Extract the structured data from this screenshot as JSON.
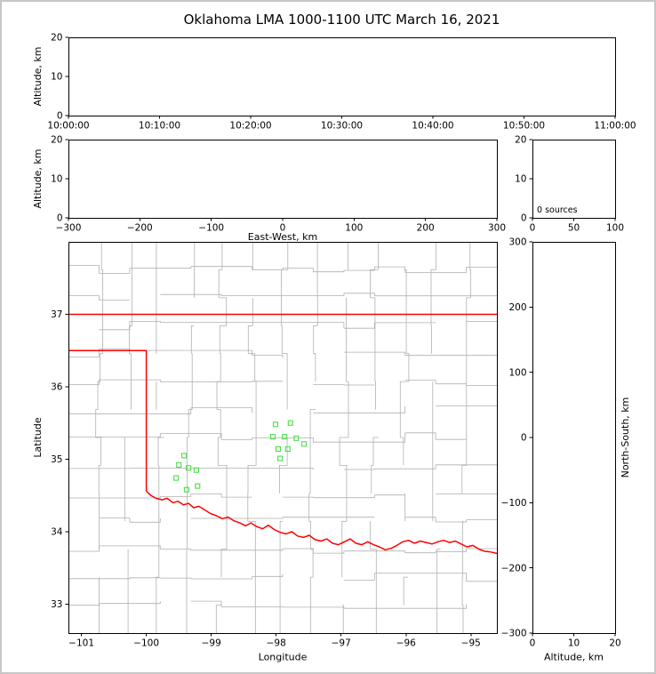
{
  "figure": {
    "title": "Oklahoma LMA 1000-1100 UTC March 16, 2021"
  },
  "colors": {
    "background": "#ffffff",
    "frame_border": "#c6c6c6",
    "axis": "#000000",
    "county_line": "#b0b0b0",
    "state_line": "#ff0000",
    "river_line": "#ff0000",
    "station_marker": "#4ade4a"
  },
  "chart_data": [
    {
      "id": "time_height",
      "name": "time-altitude-panel",
      "type": "scatter",
      "ylabel": "Altitude, km",
      "ylim": [
        0,
        20
      ],
      "y_ticks": [
        0,
        10,
        20
      ],
      "y_tick_labels": [
        "0",
        "10",
        "20"
      ],
      "x_tick_labels": [
        "10:00:00",
        "10:10:00",
        "10:20:00",
        "10:30:00",
        "10:40:00",
        "10:50:00",
        "11:00:00"
      ],
      "points": []
    },
    {
      "id": "ew_height",
      "name": "east-west-altitude-panel",
      "type": "scatter",
      "xlabel": "East-West, km",
      "ylabel": "Altitude, km",
      "xlim": [
        -300,
        300
      ],
      "ylim": [
        0,
        20
      ],
      "x_ticks": [
        -300,
        -200,
        -100,
        0,
        100,
        200,
        300
      ],
      "x_tick_labels": [
        "−300",
        "−200",
        "−100",
        "0",
        "100",
        "200",
        "300"
      ],
      "y_ticks": [
        0,
        10,
        20
      ],
      "y_tick_labels": [
        "0",
        "10",
        "20"
      ],
      "points": []
    },
    {
      "id": "altitude_histogram",
      "name": "altitude-histogram-panel",
      "type": "line",
      "xlim": [
        0,
        100
      ],
      "ylim": [
        0,
        20
      ],
      "x_ticks": [
        0,
        50,
        100
      ],
      "x_tick_labels": [
        "0",
        "50",
        "100"
      ],
      "y_ticks": [
        0,
        10,
        20
      ],
      "y_tick_labels": [
        "0",
        "10",
        "20"
      ],
      "annotation": "0 sources",
      "points": []
    },
    {
      "id": "plan_view",
      "name": "plan-view-map-panel",
      "type": "scatter",
      "xlabel": "Longitude",
      "ylabel": "Latitude",
      "xlim": [
        -101.2,
        -94.6
      ],
      "ylim": [
        32.6,
        38.0
      ],
      "x_ticks": [
        -101,
        -100,
        -99,
        -98,
        -97,
        -96,
        -95
      ],
      "x_tick_labels": [
        "−101",
        "−100",
        "−99",
        "−98",
        "−97",
        "−96",
        "−95"
      ],
      "y_ticks": [
        37,
        36,
        35,
        34,
        33
      ],
      "y_tick_labels": [
        "37",
        "36",
        "35",
        "34",
        "33"
      ],
      "stations": [
        [
          -98.01,
          35.48
        ],
        [
          -97.78,
          35.5
        ],
        [
          -98.05,
          35.31
        ],
        [
          -97.87,
          35.31
        ],
        [
          -97.69,
          35.29
        ],
        [
          -97.97,
          35.14
        ],
        [
          -97.82,
          35.14
        ],
        [
          -97.57,
          35.21
        ],
        [
          -97.94,
          35.01
        ],
        [
          -99.42,
          35.05
        ],
        [
          -99.5,
          34.92
        ],
        [
          -99.35,
          34.88
        ],
        [
          -99.23,
          34.85
        ],
        [
          -99.54,
          34.74
        ],
        [
          -99.38,
          34.58
        ],
        [
          -99.21,
          34.63
        ]
      ],
      "state_border": [
        [
          [
            -101.2,
            37.0
          ],
          [
            -94.6,
            37.0
          ]
        ],
        [
          [
            -101.2,
            36.5
          ],
          [
            -100.0,
            36.5
          ],
          [
            -100.0,
            34.56
          ]
        ]
      ],
      "red_river": [
        [
          -100.0,
          34.56
        ],
        [
          -99.93,
          34.5
        ],
        [
          -99.85,
          34.46
        ],
        [
          -99.76,
          34.44
        ],
        [
          -99.68,
          34.46
        ],
        [
          -99.59,
          34.4
        ],
        [
          -99.51,
          34.42
        ],
        [
          -99.43,
          34.37
        ],
        [
          -99.35,
          34.39
        ],
        [
          -99.27,
          34.33
        ],
        [
          -99.19,
          34.35
        ],
        [
          -99.1,
          34.3
        ],
        [
          -99.01,
          34.25
        ],
        [
          -98.92,
          34.22
        ],
        [
          -98.83,
          34.18
        ],
        [
          -98.74,
          34.2
        ],
        [
          -98.65,
          34.15
        ],
        [
          -98.56,
          34.12
        ],
        [
          -98.47,
          34.08
        ],
        [
          -98.39,
          34.12
        ],
        [
          -98.3,
          34.07
        ],
        [
          -98.21,
          34.04
        ],
        [
          -98.12,
          34.09
        ],
        [
          -98.03,
          34.03
        ],
        [
          -97.94,
          33.99
        ],
        [
          -97.85,
          33.97
        ],
        [
          -97.76,
          34.0
        ],
        [
          -97.67,
          33.94
        ],
        [
          -97.58,
          33.92
        ],
        [
          -97.49,
          33.95
        ],
        [
          -97.4,
          33.89
        ],
        [
          -97.31,
          33.87
        ],
        [
          -97.22,
          33.9
        ],
        [
          -97.13,
          33.84
        ],
        [
          -97.04,
          33.82
        ],
        [
          -96.95,
          33.86
        ],
        [
          -96.86,
          33.9
        ],
        [
          -96.77,
          33.84
        ],
        [
          -96.68,
          33.82
        ],
        [
          -96.59,
          33.86
        ],
        [
          -96.5,
          33.82
        ],
        [
          -96.41,
          33.79
        ],
        [
          -96.32,
          33.75
        ],
        [
          -96.23,
          33.77
        ],
        [
          -96.14,
          33.81
        ],
        [
          -96.05,
          33.86
        ],
        [
          -95.96,
          33.88
        ],
        [
          -95.87,
          33.84
        ],
        [
          -95.78,
          33.87
        ],
        [
          -95.69,
          33.85
        ],
        [
          -95.6,
          33.83
        ],
        [
          -95.51,
          33.86
        ],
        [
          -95.42,
          33.88
        ],
        [
          -95.33,
          33.85
        ],
        [
          -95.24,
          33.87
        ],
        [
          -95.15,
          33.83
        ],
        [
          -95.06,
          33.79
        ],
        [
          -94.97,
          33.81
        ],
        [
          -94.88,
          33.76
        ],
        [
          -94.79,
          33.73
        ],
        [
          -94.7,
          33.72
        ],
        [
          -94.6,
          33.7
        ]
      ],
      "county_grid": {
        "seed": 11,
        "cols": 14,
        "rows": 14,
        "jitter": 0.16,
        "skip": 0.12
      }
    },
    {
      "id": "ns_height",
      "name": "north-south-altitude-panel",
      "type": "scatter",
      "xlabel": "Altitude, km",
      "ylabel": "North-South, km",
      "xlim": [
        0,
        20
      ],
      "ylim": [
        -300,
        300
      ],
      "x_ticks": [
        0,
        10,
        20
      ],
      "x_tick_labels": [
        "0",
        "10",
        "20"
      ],
      "y_ticks": [
        300,
        200,
        100,
        0,
        -100,
        -200,
        -300
      ],
      "y_tick_labels": [
        "300",
        "200",
        "100",
        "0",
        "−100",
        "−200",
        "−300"
      ],
      "points": []
    }
  ]
}
